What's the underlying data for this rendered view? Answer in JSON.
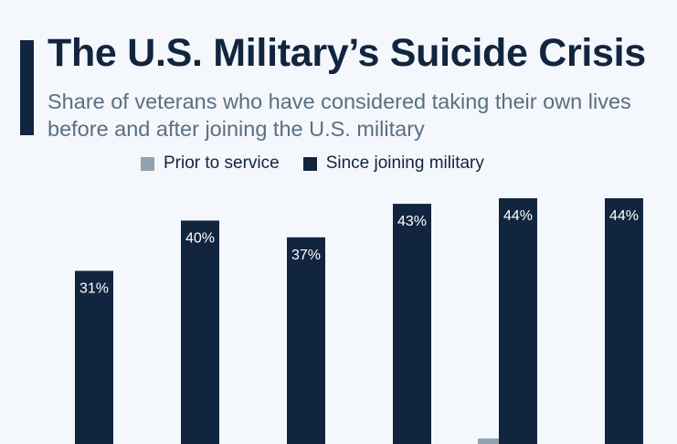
{
  "header": {
    "title": "The U.S. Military’s Suicide Crisis",
    "subtitle": "Share of veterans who have considered taking their own lives before and after joining the U.S. military"
  },
  "legend": [
    {
      "label": "Prior to service",
      "color": "#8fa3b1"
    },
    {
      "label": "Since joining military",
      "color": "#12253f"
    }
  ],
  "chart_data": {
    "type": "bar",
    "categories": [
      "",
      "",
      "",
      "",
      "",
      ""
    ],
    "series": [
      {
        "name": "Prior to service",
        "values": [
          null,
          null,
          null,
          null,
          1,
          null
        ],
        "color": "#8fa3b1"
      },
      {
        "name": "Since joining military",
        "values": [
          31,
          40,
          37,
          43,
          44,
          44
        ],
        "color": "#12253f",
        "labels": [
          "31%",
          "40%",
          "37%",
          "43%",
          "44%",
          "44%"
        ]
      }
    ],
    "ylim": [
      0,
      44
    ],
    "grid": false,
    "legend_position": "top"
  }
}
